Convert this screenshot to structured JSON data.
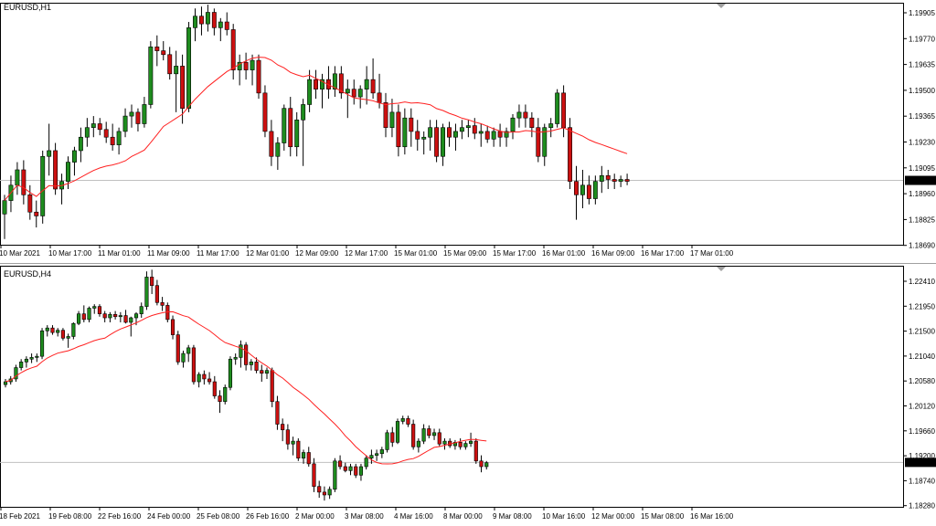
{
  "colors": {
    "bull": "#1e8c1e",
    "bear": "#cc1010",
    "wick": "#000000",
    "ma": "#ff2020",
    "price_line": "#c0c0c0",
    "price_label_bg": "#000000",
    "price_label_fg": "#ffffff",
    "frame": "#000000"
  },
  "charts": [
    {
      "symbol_label": "EURUSD,H1",
      "current_price": "1.19025",
      "price_ticks": [
        "1.19905",
        "1.19770",
        "1.19635",
        "1.19500",
        "1.19365",
        "1.19230",
        "1.19095",
        "1.18960",
        "1.18825",
        "1.18690"
      ],
      "time_ticks": [
        "10 Mar 2021",
        "10 Mar 17:00",
        "11 Mar 01:00",
        "11 Mar 09:00",
        "11 Mar 17:00",
        "12 Mar 01:00",
        "12 Mar 09:00",
        "12 Mar 17:00",
        "15 Mar 01:00",
        "15 Mar 09:00",
        "15 Mar 17:00",
        "16 Mar 01:00",
        "16 Mar 09:00",
        "16 Mar 17:00",
        "17 Mar 01:00"
      ]
    },
    {
      "symbol_label": "EURUSD,H4",
      "current_price": "1.19025",
      "price_ticks": [
        "1.22410",
        "1.21950",
        "1.21500",
        "1.21040",
        "1.20580",
        "1.20120",
        "1.19660",
        "1.19200",
        "1.18740",
        "1.18280"
      ],
      "time_ticks": [
        "18 Feb 2021",
        "19 Feb 08:00",
        "22 Feb 16:00",
        "24 Feb 00:00",
        "25 Feb 08:00",
        "26 Feb 16:00",
        "2 Mar 00:00",
        "3 Mar 08:00",
        "4 Mar 16:00",
        "8 Mar 00:00",
        "9 Mar 08:00",
        "10 Mar 16:00",
        "12 Mar 00:00",
        "15 Mar 08:00",
        "16 Mar 16:00"
      ]
    }
  ],
  "chart_data": [
    {
      "type": "candlestick",
      "title": "EURUSD,H1",
      "ylim": [
        1.1869,
        1.1995
      ],
      "moving_average": true,
      "current_price": 1.19025,
      "ohlc": [
        [
          1.1885,
          1.1895,
          1.1872,
          1.1892
        ],
        [
          1.1892,
          1.1905,
          1.1886,
          1.19
        ],
        [
          1.19,
          1.1912,
          1.1895,
          1.1908
        ],
        [
          1.1908,
          1.1913,
          1.189,
          1.1895
        ],
        [
          1.1895,
          1.19,
          1.1882,
          1.1886
        ],
        [
          1.1886,
          1.1892,
          1.1878,
          1.1884
        ],
        [
          1.1884,
          1.1918,
          1.188,
          1.1915
        ],
        [
          1.1915,
          1.1932,
          1.1905,
          1.1918
        ],
        [
          1.1918,
          1.1922,
          1.1895,
          1.1898
        ],
        [
          1.1898,
          1.1906,
          1.189,
          1.1902
        ],
        [
          1.1902,
          1.1915,
          1.1898,
          1.1912
        ],
        [
          1.1912,
          1.192,
          1.1905,
          1.1918
        ],
        [
          1.1918,
          1.193,
          1.1912,
          1.1925
        ],
        [
          1.1925,
          1.1935,
          1.192,
          1.193
        ],
        [
          1.193,
          1.1936,
          1.1925,
          1.1932
        ],
        [
          1.1932,
          1.1935,
          1.1926,
          1.1929
        ],
        [
          1.1929,
          1.1933,
          1.1922,
          1.1925
        ],
        [
          1.1925,
          1.1932,
          1.1918,
          1.1921
        ],
        [
          1.1921,
          1.193,
          1.1916,
          1.1928
        ],
        [
          1.1928,
          1.194,
          1.1925,
          1.1936
        ],
        [
          1.1936,
          1.1942,
          1.193,
          1.1938
        ],
        [
          1.1938,
          1.194,
          1.1928,
          1.1932
        ],
        [
          1.1932,
          1.1946,
          1.193,
          1.1942
        ],
        [
          1.1942,
          1.1975,
          1.194,
          1.1972
        ],
        [
          1.1972,
          1.1978,
          1.1962,
          1.197
        ],
        [
          1.197,
          1.1975,
          1.1965,
          1.1968
        ],
        [
          1.1968,
          1.1972,
          1.1955,
          1.1958
        ],
        [
          1.1958,
          1.197,
          1.1938,
          1.1962
        ],
        [
          1.1962,
          1.1968,
          1.1932,
          1.194
        ],
        [
          1.194,
          1.1985,
          1.1938,
          1.1982
        ],
        [
          1.1982,
          1.1992,
          1.1975,
          1.1988
        ],
        [
          1.1988,
          1.1993,
          1.1978,
          1.1984
        ],
        [
          1.1984,
          1.1994,
          1.198,
          1.199
        ],
        [
          1.199,
          1.1992,
          1.1978,
          1.1982
        ],
        [
          1.1982,
          1.1987,
          1.1975,
          1.1985
        ],
        [
          1.1985,
          1.199,
          1.1978,
          1.1981
        ],
        [
          1.1981,
          1.1984,
          1.1955,
          1.196
        ],
        [
          1.196,
          1.1968,
          1.1952,
          1.1964
        ],
        [
          1.1964,
          1.1969,
          1.1955,
          1.196
        ],
        [
          1.196,
          1.1968,
          1.1952,
          1.1965
        ],
        [
          1.1965,
          1.1968,
          1.1945,
          1.1948
        ],
        [
          1.1948,
          1.1952,
          1.1925,
          1.1928
        ],
        [
          1.1928,
          1.1934,
          1.191,
          1.1915
        ],
        [
          1.1915,
          1.1925,
          1.1908,
          1.1922
        ],
        [
          1.1922,
          1.1942,
          1.1918,
          1.194
        ],
        [
          1.194,
          1.1946,
          1.1915,
          1.192
        ],
        [
          1.192,
          1.1938,
          1.1915,
          1.1934
        ],
        [
          1.1934,
          1.1945,
          1.191,
          1.1942
        ],
        [
          1.1942,
          1.196,
          1.1938,
          1.1955
        ],
        [
          1.1955,
          1.196,
          1.1945,
          1.195
        ],
        [
          1.195,
          1.1958,
          1.194,
          1.1955
        ],
        [
          1.1955,
          1.1962,
          1.1945,
          1.195
        ],
        [
          1.195,
          1.1962,
          1.1946,
          1.1958
        ],
        [
          1.1958,
          1.1962,
          1.1945,
          1.1948
        ],
        [
          1.1948,
          1.1955,
          1.1935,
          1.195
        ],
        [
          1.195,
          1.1955,
          1.1942,
          1.1946
        ],
        [
          1.1946,
          1.1952,
          1.194,
          1.195
        ],
        [
          1.195,
          1.1962,
          1.1942,
          1.1955
        ],
        [
          1.1955,
          1.1966,
          1.1945,
          1.1948
        ],
        [
          1.1948,
          1.1958,
          1.194,
          1.1943
        ],
        [
          1.1943,
          1.1948,
          1.1925,
          1.193
        ],
        [
          1.193,
          1.1945,
          1.1925,
          1.1938
        ],
        [
          1.1938,
          1.1942,
          1.1915,
          1.192
        ],
        [
          1.192,
          1.194,
          1.1916,
          1.1935
        ],
        [
          1.1935,
          1.194,
          1.192,
          1.1928
        ],
        [
          1.1928,
          1.1934,
          1.1918,
          1.1924
        ],
        [
          1.1924,
          1.1928,
          1.1916,
          1.1925
        ],
        [
          1.1925,
          1.1934,
          1.1918,
          1.193
        ],
        [
          1.193,
          1.1934,
          1.1912,
          1.1915
        ],
        [
          1.1915,
          1.1932,
          1.191,
          1.193
        ],
        [
          1.193,
          1.1933,
          1.192,
          1.1925
        ],
        [
          1.1925,
          1.1932,
          1.1918,
          1.1928
        ],
        [
          1.1928,
          1.1934,
          1.1924,
          1.193
        ],
        [
          1.193,
          1.1934,
          1.1925,
          1.1931
        ],
        [
          1.1931,
          1.1935,
          1.1924,
          1.1927
        ],
        [
          1.1927,
          1.1932,
          1.192,
          1.1928
        ],
        [
          1.1928,
          1.1931,
          1.1922,
          1.1924
        ],
        [
          1.1924,
          1.193,
          1.192,
          1.1928
        ],
        [
          1.1928,
          1.1932,
          1.192,
          1.1925
        ],
        [
          1.1925,
          1.193,
          1.192,
          1.1928
        ],
        [
          1.1928,
          1.1937,
          1.1924,
          1.1935
        ],
        [
          1.1935,
          1.1942,
          1.193,
          1.1938
        ],
        [
          1.1938,
          1.1942,
          1.193,
          1.1935
        ],
        [
          1.1935,
          1.1938,
          1.1925,
          1.193
        ],
        [
          1.193,
          1.1935,
          1.1912,
          1.1915
        ],
        [
          1.1915,
          1.1932,
          1.191,
          1.193
        ],
        [
          1.193,
          1.1935,
          1.1925,
          1.1932
        ],
        [
          1.1932,
          1.195,
          1.193,
          1.1948
        ],
        [
          1.1948,
          1.1952,
          1.1925,
          1.193
        ],
        [
          1.193,
          1.1935,
          1.1898,
          1.1902
        ],
        [
          1.1902,
          1.191,
          1.1882,
          1.1895
        ],
        [
          1.1895,
          1.1908,
          1.1888,
          1.19
        ],
        [
          1.19,
          1.1905,
          1.189,
          1.1893
        ],
        [
          1.1893,
          1.1905,
          1.189,
          1.1902
        ],
        [
          1.1902,
          1.191,
          1.1896,
          1.1905
        ],
        [
          1.1905,
          1.1908,
          1.1898,
          1.1903
        ],
        [
          1.1903,
          1.1906,
          1.1898,
          1.1902
        ],
        [
          1.1902,
          1.1905,
          1.1899,
          1.1903
        ],
        [
          1.1903,
          1.1906,
          1.19,
          1.1902
        ]
      ]
    },
    {
      "type": "candlestick",
      "title": "EURUSD,H4",
      "ylim": [
        1.1824,
        1.225
      ],
      "moving_average": true,
      "current_price": 1.19025,
      "ohlc": [
        [
          1.204,
          1.205,
          1.2035,
          1.2045
        ],
        [
          1.2045,
          1.2055,
          1.204,
          1.205
        ],
        [
          1.205,
          1.2075,
          1.2045,
          1.207
        ],
        [
          1.207,
          1.2085,
          1.2065,
          1.208
        ],
        [
          1.208,
          1.209,
          1.207,
          1.2085
        ],
        [
          1.2085,
          1.2095,
          1.2078,
          1.2088
        ],
        [
          1.2088,
          1.2095,
          1.208,
          1.209
        ],
        [
          1.209,
          1.214,
          1.2085,
          1.2135
        ],
        [
          1.2135,
          1.2145,
          1.2125,
          1.214
        ],
        [
          1.214,
          1.2145,
          1.2128,
          1.2132
        ],
        [
          1.2132,
          1.214,
          1.2125,
          1.2136
        ],
        [
          1.2136,
          1.214,
          1.2118,
          1.2122
        ],
        [
          1.2122,
          1.213,
          1.2105,
          1.2125
        ],
        [
          1.2125,
          1.215,
          1.212,
          1.2148
        ],
        [
          1.2148,
          1.217,
          1.2145,
          1.2165
        ],
        [
          1.2165,
          1.218,
          1.215,
          1.2155
        ],
        [
          1.2155,
          1.2178,
          1.215,
          1.2175
        ],
        [
          1.2175,
          1.2182,
          1.2165,
          1.2178
        ],
        [
          1.2178,
          1.2182,
          1.216,
          1.2165
        ],
        [
          1.2165,
          1.217,
          1.215,
          1.2158
        ],
        [
          1.2158,
          1.2168,
          1.215,
          1.2164
        ],
        [
          1.2164,
          1.217,
          1.2155,
          1.216
        ],
        [
          1.216,
          1.2168,
          1.215,
          1.2162
        ],
        [
          1.2162,
          1.2172,
          1.2148,
          1.215
        ],
        [
          1.215,
          1.216,
          1.2125,
          1.2158
        ],
        [
          1.2158,
          1.2168,
          1.2145,
          1.2165
        ],
        [
          1.2165,
          1.2185,
          1.2158,
          1.2178
        ],
        [
          1.2178,
          1.224,
          1.2172,
          1.223
        ],
        [
          1.223,
          1.2243,
          1.22,
          1.2215
        ],
        [
          1.2215,
          1.2225,
          1.218,
          1.2185
        ],
        [
          1.2185,
          1.2195,
          1.217,
          1.218
        ],
        [
          1.218,
          1.2185,
          1.215,
          1.2155
        ],
        [
          1.2155,
          1.2162,
          1.212,
          1.2128
        ],
        [
          1.2128,
          1.2135,
          1.2075,
          1.208
        ],
        [
          1.208,
          1.21,
          1.207,
          1.2095
        ],
        [
          1.2095,
          1.211,
          1.208,
          1.2105
        ],
        [
          1.2105,
          1.211,
          1.204,
          1.2045
        ],
        [
          1.2045,
          1.2062,
          1.2035,
          1.2058
        ],
        [
          1.2058,
          1.2065,
          1.204,
          1.205
        ],
        [
          1.205,
          1.2062,
          1.204,
          1.2045
        ],
        [
          1.2045,
          1.2055,
          1.2015,
          1.202
        ],
        [
          1.202,
          1.203,
          1.199,
          1.201
        ],
        [
          1.201,
          1.204,
          1.2005,
          1.2035
        ],
        [
          1.2035,
          1.209,
          1.203,
          1.2085
        ],
        [
          1.2085,
          1.2095,
          1.2075,
          1.2088
        ],
        [
          1.2088,
          1.2118,
          1.207,
          1.211
        ],
        [
          1.211,
          1.2115,
          1.2065,
          1.2075
        ],
        [
          1.2075,
          1.2085,
          1.2065,
          1.208
        ],
        [
          1.208,
          1.2088,
          1.206,
          1.2065
        ],
        [
          1.2065,
          1.2075,
          1.2045,
          1.206
        ],
        [
          1.206,
          1.207,
          1.205,
          1.2065
        ],
        [
          1.2065,
          1.207,
          1.2,
          1.201
        ],
        [
          1.201,
          1.202,
          1.196,
          1.197
        ],
        [
          1.197,
          1.198,
          1.194,
          1.196
        ],
        [
          1.196,
          1.197,
          1.1925,
          1.1935
        ],
        [
          1.1935,
          1.1948,
          1.1915,
          1.194
        ],
        [
          1.194,
          1.1945,
          1.1905,
          1.191
        ],
        [
          1.191,
          1.1925,
          1.19,
          1.192
        ],
        [
          1.192,
          1.193,
          1.1895,
          1.19
        ],
        [
          1.19,
          1.191,
          1.185,
          1.186
        ],
        [
          1.186,
          1.187,
          1.184,
          1.185
        ],
        [
          1.185,
          1.186,
          1.1835,
          1.1845
        ],
        [
          1.1845,
          1.186,
          1.1838,
          1.1855
        ],
        [
          1.1855,
          1.191,
          1.185,
          1.1905
        ],
        [
          1.1905,
          1.1915,
          1.189,
          1.1895
        ],
        [
          1.1895,
          1.1902,
          1.1885,
          1.1888
        ],
        [
          1.1888,
          1.19,
          1.188,
          1.1895
        ],
        [
          1.1895,
          1.19,
          1.1875,
          1.188
        ],
        [
          1.188,
          1.19,
          1.187,
          1.1895
        ],
        [
          1.1895,
          1.1915,
          1.189,
          1.191
        ],
        [
          1.191,
          1.1925,
          1.19,
          1.1915
        ],
        [
          1.1915,
          1.1925,
          1.1905,
          1.1918
        ],
        [
          1.1918,
          1.193,
          1.191,
          1.1925
        ],
        [
          1.1925,
          1.196,
          1.192,
          1.1955
        ],
        [
          1.1955,
          1.1965,
          1.193,
          1.1938
        ],
        [
          1.1938,
          1.198,
          1.1935,
          1.1975
        ],
        [
          1.1975,
          1.1985,
          1.197,
          1.198
        ],
        [
          1.198,
          1.1985,
          1.1965,
          1.197
        ],
        [
          1.197,
          1.1978,
          1.1925,
          1.193
        ],
        [
          1.193,
          1.1945,
          1.192,
          1.194
        ],
        [
          1.194,
          1.197,
          1.1935,
          1.1962
        ],
        [
          1.1962,
          1.1968,
          1.1945,
          1.195
        ],
        [
          1.195,
          1.1962,
          1.1942,
          1.1955
        ],
        [
          1.1955,
          1.1962,
          1.193,
          1.1935
        ],
        [
          1.1935,
          1.1945,
          1.1925,
          1.194
        ],
        [
          1.194,
          1.1945,
          1.1928,
          1.1932
        ],
        [
          1.1932,
          1.1942,
          1.1925,
          1.1938
        ],
        [
          1.1938,
          1.1945,
          1.1925,
          1.193
        ],
        [
          1.193,
          1.194,
          1.1925,
          1.1936
        ],
        [
          1.1936,
          1.1955,
          1.193,
          1.194
        ],
        [
          1.194,
          1.1945,
          1.19,
          1.1905
        ],
        [
          1.1905,
          1.1915,
          1.1885,
          1.1895
        ],
        [
          1.1895,
          1.1905,
          1.189,
          1.1902
        ]
      ]
    }
  ]
}
